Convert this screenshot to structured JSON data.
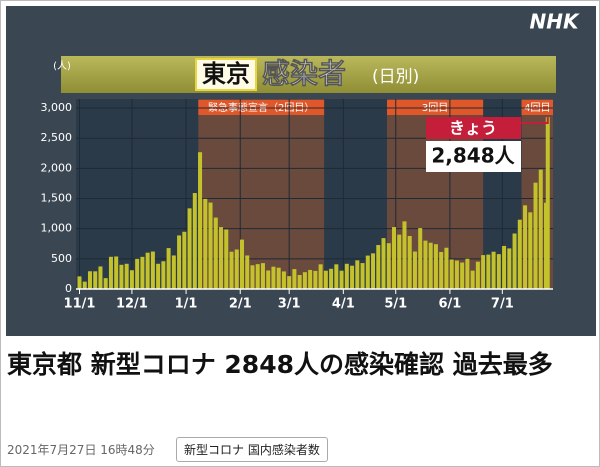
{
  "logo": "NHK",
  "chart_data": {
    "type": "bar",
    "title": {
      "place": "東京",
      "topic": "感染者",
      "unit": "(日別)"
    },
    "y_label": "(人)",
    "x": [
      0,
      3,
      6,
      9,
      12,
      15,
      18,
      21,
      24,
      27,
      30,
      33,
      36,
      39,
      42,
      45,
      48,
      51,
      54,
      57,
      60,
      63,
      66,
      69,
      72,
      75,
      78,
      81,
      84,
      87,
      90,
      93,
      96,
      99,
      102,
      105,
      108,
      111,
      114,
      117,
      120,
      123,
      126,
      129,
      132,
      135,
      138,
      141,
      144,
      147,
      150,
      153,
      156,
      159,
      162,
      165,
      168,
      171,
      174,
      177,
      180,
      183,
      186,
      189,
      192,
      195,
      198,
      201,
      204,
      207,
      210,
      213,
      216,
      219,
      222,
      225,
      228,
      231,
      234,
      237,
      240,
      243,
      246,
      249,
      252,
      255,
      258,
      261,
      264,
      267,
      268
    ],
    "values": [
      209,
      122,
      294,
      293,
      374,
      180,
      534,
      539,
      401,
      418,
      311,
      500,
      533,
      602,
      621,
      418,
      460,
      678,
      556,
      888,
      949,
      1337,
      1591,
      2268,
      1494,
      1433,
      1184,
      1026,
      986,
      618,
      655,
      819,
      556,
      393,
      412,
      429,
      307,
      370,
      353,
      291,
      213,
      330,
      232,
      279,
      316,
      300,
      409,
      303,
      335,
      409,
      304,
      418,
      386,
      475,
      430,
      554,
      591,
      729,
      843,
      759,
      1027,
      901,
      1121,
      879,
      621,
      1010,
      802,
      767,
      743,
      614,
      684,
      489,
      472,
      439,
      501,
      304,
      453,
      562,
      570,
      618,
      578,
      714,
      673,
      920,
      1149,
      1387,
      1271,
      1763,
      1979,
      1429,
      2848
    ],
    "color": "#c4c22c",
    "xlim": [
      -2,
      271
    ],
    "xticks": [
      {
        "value": 0,
        "label": "11/1"
      },
      {
        "value": 30,
        "label": "12/1"
      },
      {
        "value": 61,
        "label": "1/1"
      },
      {
        "value": 92,
        "label": "2/1"
      },
      {
        "value": 120,
        "label": "3/1"
      },
      {
        "value": 151,
        "label": "4/1"
      },
      {
        "value": 181,
        "label": "5/1"
      },
      {
        "value": 212,
        "label": "6/1"
      },
      {
        "value": 242,
        "label": "7/1"
      }
    ],
    "ylim": [
      0,
      3150
    ],
    "yticks": [
      0,
      500,
      {
        "value": 1000,
        "label": "1,000"
      },
      {
        "value": 1500,
        "label": "1,500"
      },
      {
        "value": 2000,
        "label": "2,000"
      },
      {
        "value": 2500,
        "label": "2,500"
      },
      {
        "value": 3000,
        "label": "3,000"
      }
    ],
    "grid": true,
    "periods": [
      {
        "label": "緊急事態宣言（2回目）",
        "start": 68,
        "end": 140
      },
      {
        "label": "3回目",
        "start": 176,
        "end": 231
      },
      {
        "label": "4回目",
        "start": 253,
        "end": 294
      }
    ],
    "annotation": {
      "title": "きょう",
      "text": "2,848人"
    }
  },
  "article": {
    "headline": "東京都 新型コロナ 2848人の感染確認 過去最多",
    "date": "2021年7月27日 16時48分",
    "tags": [
      "新型コロナ 国内感染者数"
    ]
  }
}
